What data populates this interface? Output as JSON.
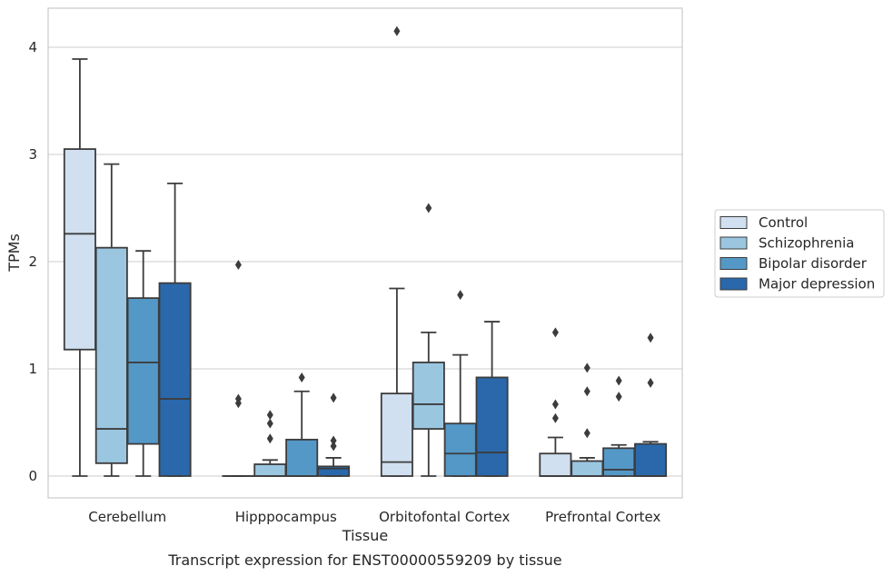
{
  "chart_data": {
    "type": "box",
    "title": "",
    "caption": "Transcript expression for ENST00000559209 by tissue",
    "xlabel": "Tissue",
    "ylabel": "TPMs",
    "ylim": [
      -0.2,
      4.35
    ],
    "yticks": [
      0,
      1,
      2,
      3,
      4
    ],
    "grid": "horizontal",
    "legend_position": "right",
    "categories": [
      "Cerebellum",
      "Hipppocampus",
      "Orbitofontal Cortex",
      "Prefrontal Cortex"
    ],
    "series": [
      {
        "name": "Control",
        "color": "#d0e0f0",
        "boxes": [
          {
            "whisker_low": 0,
            "q1": 1.18,
            "median": 2.26,
            "q3": 3.05,
            "whisker_high": 3.89,
            "outliers": []
          },
          {
            "whisker_low": 0,
            "q1": 0,
            "median": 0,
            "q3": 0,
            "whisker_high": 0,
            "outliers": [
              0.68,
              0.72,
              1.97
            ]
          },
          {
            "whisker_low": 0,
            "q1": 0,
            "median": 0.13,
            "q3": 0.77,
            "whisker_high": 1.75,
            "outliers": [
              4.15
            ]
          },
          {
            "whisker_low": 0,
            "q1": 0,
            "median": 0,
            "q3": 0.21,
            "whisker_high": 0.36,
            "outliers": [
              0.54,
              0.67,
              1.34
            ]
          }
        ]
      },
      {
        "name": "Schizophrenia",
        "color": "#9ac6e0",
        "boxes": [
          {
            "whisker_low": 0,
            "q1": 0.12,
            "median": 0.44,
            "q3": 2.13,
            "whisker_high": 2.91,
            "outliers": []
          },
          {
            "whisker_low": 0,
            "q1": 0,
            "median": 0,
            "q3": 0.11,
            "whisker_high": 0.15,
            "outliers": [
              0.35,
              0.49,
              0.57
            ]
          },
          {
            "whisker_low": 0,
            "q1": 0.44,
            "median": 0.67,
            "q3": 1.06,
            "whisker_high": 1.34,
            "outliers": [
              2.5
            ]
          },
          {
            "whisker_low": 0,
            "q1": 0,
            "median": 0,
            "q3": 0.14,
            "whisker_high": 0.17,
            "outliers": [
              0.4,
              0.79,
              1.01
            ]
          }
        ]
      },
      {
        "name": "Bipolar disorder",
        "color": "#5498c7",
        "boxes": [
          {
            "whisker_low": 0,
            "q1": 0.3,
            "median": 1.06,
            "q3": 1.66,
            "whisker_high": 2.1,
            "outliers": []
          },
          {
            "whisker_low": 0,
            "q1": 0,
            "median": 0,
            "q3": 0.34,
            "whisker_high": 0.79,
            "outliers": [
              0.92
            ]
          },
          {
            "whisker_low": 0,
            "q1": 0,
            "median": 0.21,
            "q3": 0.49,
            "whisker_high": 1.13,
            "outliers": [
              1.69
            ]
          },
          {
            "whisker_low": 0,
            "q1": 0,
            "median": 0.06,
            "q3": 0.26,
            "whisker_high": 0.29,
            "outliers": [
              0.74,
              0.89
            ]
          }
        ]
      },
      {
        "name": "Major depression",
        "color": "#2a68ab",
        "boxes": [
          {
            "whisker_low": 0,
            "q1": 0,
            "median": 0.72,
            "q3": 1.8,
            "whisker_high": 2.73,
            "outliers": []
          },
          {
            "whisker_low": 0,
            "q1": 0,
            "median": 0.07,
            "q3": 0.09,
            "whisker_high": 0.17,
            "outliers": [
              0.28,
              0.33,
              0.73
            ]
          },
          {
            "whisker_low": 0,
            "q1": 0,
            "median": 0.22,
            "q3": 0.92,
            "whisker_high": 1.44,
            "outliers": []
          },
          {
            "whisker_low": 0,
            "q1": 0,
            "median": 0,
            "q3": 0.3,
            "whisker_high": 0.32,
            "outliers": [
              0.87,
              1.29
            ]
          }
        ]
      }
    ]
  }
}
